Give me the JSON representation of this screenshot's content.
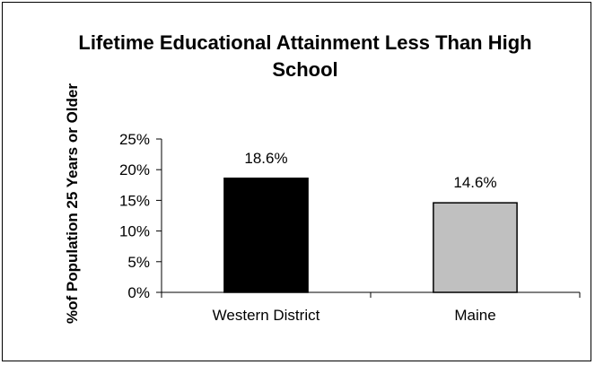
{
  "chart_data": {
    "type": "bar",
    "title": "Lifetime Educational Attainment Less Than High School",
    "ylabel": "%of Population 25 Years or Older",
    "xlabel": "",
    "categories": [
      "Western District",
      "Maine"
    ],
    "values": [
      18.6,
      14.6
    ],
    "data_labels": [
      "18.6%",
      "14.6%"
    ],
    "ylim": [
      0,
      25
    ],
    "yticks": [
      0,
      5,
      10,
      15,
      20,
      25
    ],
    "ytick_labels": [
      "0%",
      "5%",
      "10%",
      "15%",
      "20%",
      "25%"
    ],
    "bar_colors": [
      "#000000",
      "#c0c0c0"
    ],
    "grid": false,
    "legend": "none"
  }
}
